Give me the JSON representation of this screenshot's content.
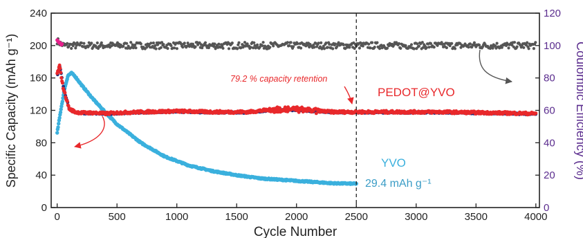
{
  "chart_data": {
    "type": "scatter",
    "xlabel": "Cycle Number",
    "ylabel_left": "Specific Capacity (mAh g⁻¹)",
    "ylabel_right": "Coulombic Efficiency (%)",
    "xlim": [
      -50,
      4030
    ],
    "ylim_left": [
      0,
      240
    ],
    "ylim_right": [
      0,
      120
    ],
    "x_ticks": [
      0,
      500,
      1000,
      1500,
      2000,
      2500,
      3000,
      3500,
      4000
    ],
    "y_left_ticks": [
      0,
      40,
      80,
      120,
      160,
      200,
      240
    ],
    "y_right_ticks": [
      0,
      20,
      40,
      60,
      80,
      100,
      120
    ],
    "grid": false,
    "reference_line": {
      "x": 2500,
      "style": "dashed"
    },
    "series": [
      {
        "name": "PEDOT@YVO",
        "color": "#e8282b",
        "axis": "left",
        "x": [
          0,
          20,
          50,
          100,
          150,
          200,
          300,
          400,
          500,
          700,
          1000,
          1300,
          1600,
          1800,
          2000,
          2100,
          2300,
          2500,
          2800,
          3200,
          3600,
          4000
        ],
        "values": [
          165,
          175,
          148,
          122,
          118,
          117,
          117,
          116,
          117,
          118,
          119,
          118,
          118,
          121,
          121,
          120,
          118,
          118,
          118,
          118,
          117,
          116
        ]
      },
      {
        "name": "YVO",
        "color": "#3bb0dd",
        "axis": "left",
        "x": [
          0,
          30,
          60,
          90,
          120,
          150,
          200,
          300,
          400,
          500,
          700,
          900,
          1100,
          1300,
          1500,
          1700,
          1900,
          2100,
          2300,
          2500
        ],
        "values": [
          92,
          120,
          145,
          163,
          166,
          162,
          152,
          134,
          118,
          103,
          80,
          63,
          52,
          45,
          40,
          36,
          34,
          32,
          30,
          29.4
        ]
      },
      {
        "name": "Coulombic Efficiency",
        "color": "#555555",
        "axis": "right",
        "x": [
          0,
          30,
          60,
          4000
        ],
        "values": [
          103,
          101,
          100,
          100
        ],
        "jitter": 2
      }
    ],
    "annotations": {
      "retention": "79.2 % capacity retention",
      "pedot_label": "PEDOT@YVO",
      "yvo_label": "YVO",
      "final_capacity": "29.4 mAh g⁻¹"
    },
    "colors": {
      "pedot": "#e8282b",
      "yvo": "#3bb0dd",
      "ce": "#555555",
      "right_axis": "#5b2d8e",
      "underlay": "#1f2a7a"
    }
  }
}
